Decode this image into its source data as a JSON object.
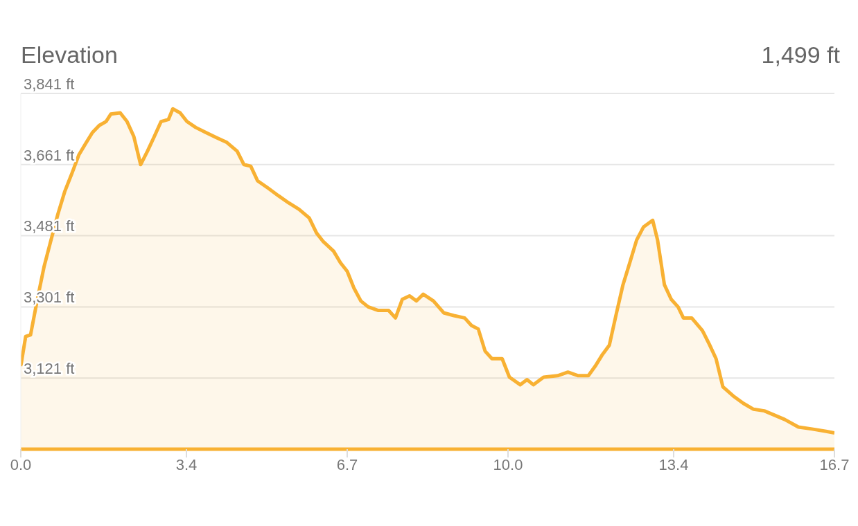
{
  "chart_data": {
    "type": "area",
    "title": "Elevation",
    "annotations": [
      "1,499 ft"
    ],
    "x": [
      0,
      0.1,
      0.2,
      0.34,
      0.48,
      0.62,
      0.76,
      0.9,
      1.05,
      1.19,
      1.33,
      1.47,
      1.61,
      1.75,
      1.85,
      2.04,
      2.18,
      2.32,
      2.46,
      2.6,
      2.74,
      2.88,
      3.03,
      3.12,
      3.27,
      3.41,
      3.59,
      3.8,
      4.02,
      4.23,
      4.44,
      4.58,
      4.72,
      4.86,
      5.08,
      5.29,
      5.5,
      5.71,
      5.92,
      6.07,
      6.21,
      6.42,
      6.56,
      6.7,
      6.84,
      6.98,
      7.13,
      7.34,
      7.55,
      7.69,
      7.83,
      7.98,
      8.12,
      8.26,
      8.47,
      8.68,
      8.89,
      9.11,
      9.25,
      9.39,
      9.53,
      9.67,
      9.88,
      10.03,
      10.25,
      10.39,
      10.52,
      10.73,
      11.02,
      11.23,
      11.44,
      11.65,
      11.79,
      11.93,
      12.08,
      12.22,
      12.36,
      12.5,
      12.64,
      12.78,
      12.97,
      13.07,
      13.21,
      13.35,
      13.49,
      13.6,
      13.77,
      13.99,
      14.13,
      14.27,
      14.41,
      14.62,
      14.83,
      15.04,
      15.26,
      15.47,
      15.68,
      15.96,
      16.24,
      16.53,
      16.7
    ],
    "series": [
      {
        "color": "#f8b133",
        "values": [
          3151,
          3226,
          3230,
          3320,
          3404,
          3470,
          3535,
          3592,
          3639,
          3685,
          3714,
          3742,
          3760,
          3770,
          3789,
          3792,
          3770,
          3732,
          3661,
          3695,
          3732,
          3770,
          3775,
          3802,
          3792,
          3770,
          3755,
          3742,
          3729,
          3717,
          3695,
          3661,
          3657,
          3620,
          3601,
          3582,
          3564,
          3548,
          3526,
          3488,
          3466,
          3442,
          3413,
          3391,
          3348,
          3316,
          3301,
          3292,
          3292,
          3273,
          3320,
          3329,
          3316,
          3333,
          3316,
          3286,
          3279,
          3273,
          3254,
          3245,
          3189,
          3170,
          3170,
          3123,
          3104,
          3117,
          3104,
          3123,
          3127,
          3136,
          3127,
          3127,
          3151,
          3179,
          3204,
          3282,
          3357,
          3413,
          3470,
          3503,
          3520,
          3470,
          3357,
          3320,
          3301,
          3273,
          3273,
          3241,
          3207,
          3170,
          3099,
          3076,
          3057,
          3042,
          3038,
          3027,
          3016,
          2997,
          2992,
          2986,
          2982
        ]
      }
    ],
    "xlim": [
      0,
      16.7
    ],
    "xticks": [
      {
        "value": 0,
        "label": "0.0"
      },
      3.4,
      6.7,
      {
        "value": 10,
        "label": "10.0"
      },
      13.4,
      16.7
    ],
    "ylim": [
      2941,
      3841
    ],
    "yticks": [
      {
        "value": 3121,
        "label": "3,121 ft"
      },
      {
        "value": 3301,
        "label": "3,301 ft"
      },
      {
        "value": 3481,
        "label": "3,481 ft"
      },
      {
        "value": 3661,
        "label": "3,661 ft"
      },
      {
        "value": 3841,
        "label": "3,841 ft"
      }
    ],
    "grid": "y"
  }
}
